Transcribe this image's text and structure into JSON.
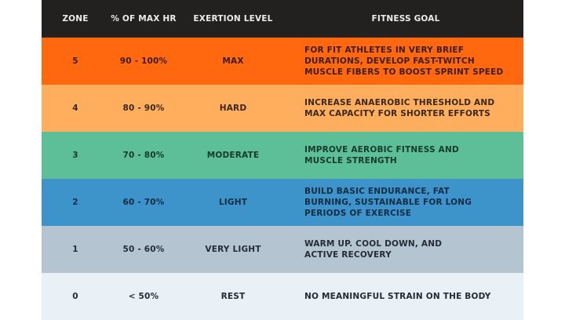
{
  "header": {
    "zone": "ZONE",
    "max_hr": "% OF MAX HR",
    "exertion": "EXERTION LEVEL",
    "goal": "FITNESS GOAL"
  },
  "rows": [
    {
      "zone": "5",
      "max_hr": "90 - 100%",
      "exertion": "MAX",
      "goal": [
        "FOR FIT ATHLETES IN VERY BRIEF",
        "DURATIONS, DEVELOP FAST-TWITCH",
        "MUSCLE FIBERS TO BOOST SPRINT SPEED"
      ],
      "bg": "#ff680f",
      "fg": "#3a1e10"
    },
    {
      "zone": "4",
      "max_hr": "80 - 90%",
      "exertion": "HARD",
      "goal": [
        "INCREASE ANAEROBIC THRESHOLD AND",
        "MAX CAPACITY FOR SHORTER EFFORTS"
      ],
      "bg": "#ffae5e",
      "fg": "#3a2818"
    },
    {
      "zone": "3",
      "max_hr": "70 - 80%",
      "exertion": "MODERATE",
      "goal": [
        "IMPROVE AEROBIC FITNESS AND",
        "MUSCLE STRENGTH"
      ],
      "bg": "#5cbf98",
      "fg": "#173a2c"
    },
    {
      "zone": "2",
      "max_hr": "60 - 70%",
      "exertion": "LIGHT",
      "goal": [
        "BUILD BASIC ENDURANCE, FAT",
        "BURNING, SUSTAINABLE FOR LONG",
        "PERIODS OF EXERCISE"
      ],
      "bg": "#3d94cb",
      "fg": "#142c44"
    },
    {
      "zone": "1",
      "max_hr": "50 - 60%",
      "exertion": "VERY LIGHT",
      "goal": [
        "WARM UP. COOL DOWN, AND",
        "ACTIVE RECOVERY"
      ],
      "bg": "#b4c4d0",
      "fg": "#252c36"
    },
    {
      "zone": "0",
      "max_hr": "< 50%",
      "exertion": "REST",
      "goal": [
        "NO MEANINGFUL STRAIN ON THE BODY"
      ],
      "bg": "#e9f0f6",
      "fg": "#252a33"
    }
  ]
}
